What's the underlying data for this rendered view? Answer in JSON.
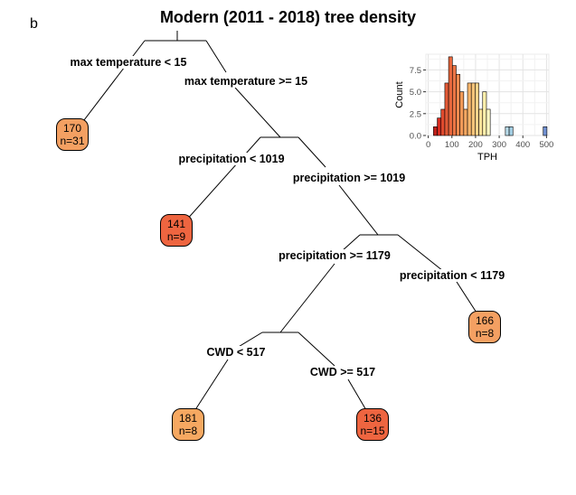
{
  "panel_label": "b",
  "title": "Modern (2011 - 2018) tree density",
  "splits": {
    "s1_left": "max temperature < 15",
    "s1_right": "max temperature >= 15",
    "s2_left": "precipitation < 1019",
    "s2_right": "precipitation >= 1019",
    "s3_left": "precipitation >= 1179",
    "s3_right": "precipitation < 1179",
    "s4_left": "CWD < 517",
    "s4_right": "CWD >= 517"
  },
  "leaves": {
    "l1": {
      "value": "170",
      "n": "n=31",
      "color": "#f4a062"
    },
    "l2": {
      "value": "141",
      "n": "n=9",
      "color": "#ee6540"
    },
    "l3": {
      "value": "166",
      "n": "n=8",
      "color": "#f4a062"
    },
    "l4": {
      "value": "181",
      "n": "n=8",
      "color": "#f6a861"
    },
    "l5": {
      "value": "136",
      "n": "n=15",
      "color": "#ee6540"
    }
  },
  "chart_data": {
    "type": "bar",
    "xlabel": "TPH",
    "ylabel": "Count",
    "xlim": [
      -10,
      510
    ],
    "ylim": [
      0,
      9.3
    ],
    "xticks": [
      0,
      100,
      200,
      300,
      400,
      500
    ],
    "yticks": [
      0.0,
      2.5,
      5.0,
      7.5
    ],
    "ytick_labels": [
      "0.0",
      "2.5",
      "5.0",
      "7.5"
    ],
    "grid": true,
    "bin_width": 16,
    "bins": [
      {
        "x0": 22,
        "count": 1,
        "color": "#c0201a"
      },
      {
        "x0": 38,
        "count": 2,
        "color": "#d62b20"
      },
      {
        "x0": 54,
        "count": 3,
        "color": "#e04a2e"
      },
      {
        "x0": 70,
        "count": 6,
        "color": "#e35a36"
      },
      {
        "x0": 86,
        "count": 9,
        "color": "#e8683d"
      },
      {
        "x0": 102,
        "count": 8,
        "color": "#ec7545"
      },
      {
        "x0": 118,
        "count": 7,
        "color": "#f08a4f"
      },
      {
        "x0": 134,
        "count": 5,
        "color": "#f49a58"
      },
      {
        "x0": 150,
        "count": 3,
        "color": "#f6a862"
      },
      {
        "x0": 166,
        "count": 6,
        "color": "#f8b66c"
      },
      {
        "x0": 182,
        "count": 6,
        "color": "#f9c47a"
      },
      {
        "x0": 198,
        "count": 6,
        "color": "#fbd38a"
      },
      {
        "x0": 214,
        "count": 3,
        "color": "#fde29a"
      },
      {
        "x0": 230,
        "count": 5,
        "color": "#fef0ad"
      },
      {
        "x0": 246,
        "count": 3,
        "color": "#fdf8c4"
      },
      {
        "x0": 326,
        "count": 1,
        "color": "#b8dbe9"
      },
      {
        "x0": 342,
        "count": 1,
        "color": "#a4cfe4"
      },
      {
        "x0": 486,
        "count": 1,
        "color": "#6f8fd0"
      }
    ]
  }
}
